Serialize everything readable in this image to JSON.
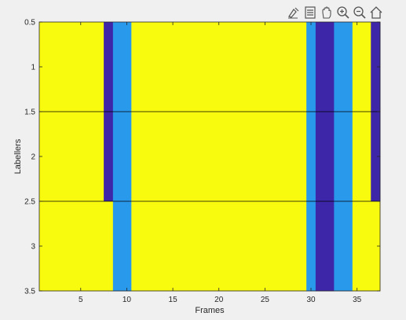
{
  "toolbar": {
    "icons": [
      "brush-icon",
      "legend-icon",
      "pan-hand-icon",
      "zoom-in-icon",
      "zoom-out-icon",
      "home-icon"
    ]
  },
  "colors": {
    "yellow": "#f9fb0e",
    "light_blue": "#2999ec",
    "dark_blue": "#3e26a8",
    "axis": "#262626",
    "background": "#f0f0f0"
  },
  "chart_data": {
    "type": "heatmap",
    "xlabel": "Frames",
    "ylabel": "Labellers",
    "xlim": [
      0.5,
      37.5
    ],
    "ylim": [
      0.5,
      3.5
    ],
    "y_reversed": true,
    "xticks": [
      5,
      10,
      15,
      20,
      25,
      30,
      35
    ],
    "yticks": [
      0.5,
      1,
      1.5,
      2,
      2.5,
      3,
      3.5
    ],
    "ytick_labels": [
      "0.5",
      "1",
      "1.5",
      "2",
      "2.5",
      "3",
      "3.5"
    ],
    "row_separators": [
      1.5,
      2.5
    ],
    "rows": [
      {
        "labeller": 1,
        "values": [
          3,
          3,
          3,
          3,
          3,
          3,
          3,
          1,
          2,
          2,
          3,
          3,
          3,
          3,
          3,
          3,
          3,
          3,
          3,
          3,
          3,
          3,
          3,
          3,
          3,
          3,
          3,
          3,
          3,
          2,
          1,
          1,
          2,
          2,
          3,
          3,
          1
        ]
      },
      {
        "labeller": 2,
        "values": [
          3,
          3,
          3,
          3,
          3,
          3,
          3,
          1,
          2,
          2,
          3,
          3,
          3,
          3,
          3,
          3,
          3,
          3,
          3,
          3,
          3,
          3,
          3,
          3,
          3,
          3,
          3,
          3,
          3,
          2,
          1,
          1,
          2,
          2,
          3,
          3,
          1
        ]
      },
      {
        "labeller": 3,
        "values": [
          3,
          3,
          3,
          3,
          3,
          3,
          3,
          3,
          2,
          2,
          3,
          3,
          3,
          3,
          3,
          3,
          3,
          3,
          3,
          3,
          3,
          3,
          3,
          3,
          3,
          3,
          3,
          3,
          3,
          2,
          1,
          1,
          2,
          2,
          3,
          3,
          3
        ]
      }
    ],
    "value_colors": {
      "1": "#3e26a8",
      "2": "#2999ec",
      "3": "#f9fb0e"
    }
  }
}
